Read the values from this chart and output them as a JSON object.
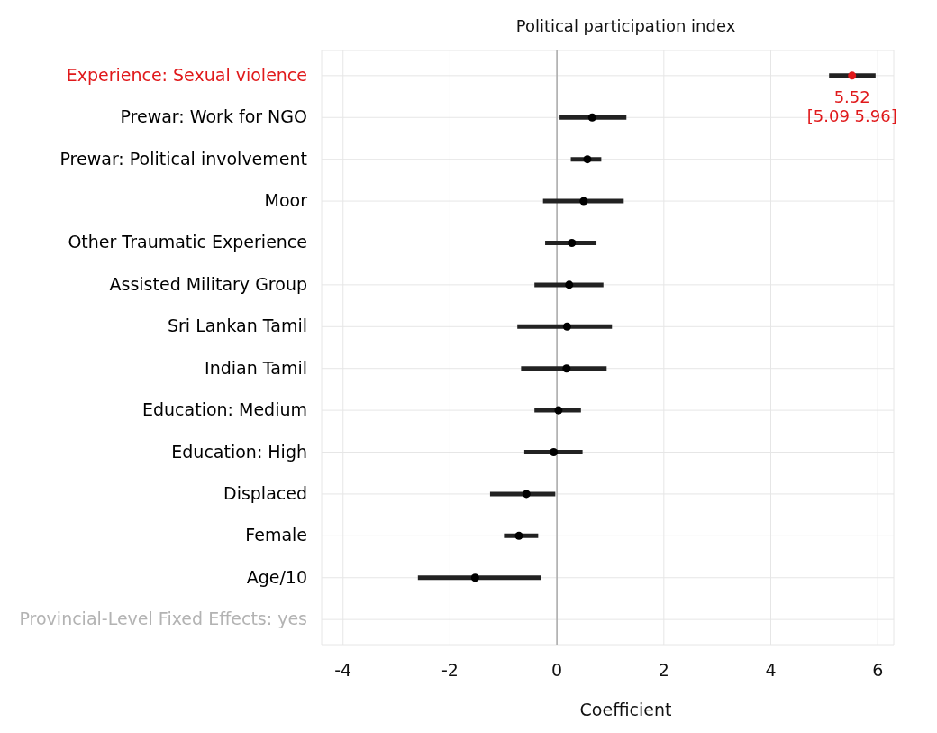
{
  "chart_data": {
    "type": "scatter",
    "orientation": "horizontal",
    "title": "Political participation index",
    "xlabel": "Coefficient",
    "categories": [
      "Experience: Sexual violence",
      "Prewar: Work for NGO",
      "Prewar: Political involvement",
      "Moor",
      "Other Traumatic Experience",
      "Assisted Military Group",
      "Sri Lankan Tamil",
      "Indian Tamil",
      "Education: Medium",
      "Education: High",
      "Displaced",
      "Female",
      "Age/10",
      "Provincial-Level Fixed Effects: yes"
    ],
    "values": [
      5.52,
      0.66,
      0.57,
      0.5,
      0.28,
      0.23,
      0.19,
      0.18,
      0.03,
      -0.06,
      -0.57,
      -0.71,
      -1.53,
      null
    ],
    "errors": [
      [
        5.09,
        5.96
      ],
      [
        0.05,
        1.3
      ],
      [
        0.26,
        0.83
      ],
      [
        -0.26,
        1.25
      ],
      [
        -0.22,
        0.74
      ],
      [
        -0.42,
        0.87
      ],
      [
        -0.74,
        1.03
      ],
      [
        -0.67,
        0.93
      ],
      [
        -0.42,
        0.45
      ],
      [
        -0.61,
        0.48
      ],
      [
        -1.25,
        -0.03
      ],
      [
        -0.99,
        -0.35
      ],
      [
        -2.6,
        -0.29
      ],
      null
    ],
    "colors": [
      "#e0191b",
      "#000000",
      "#000000",
      "#000000",
      "#000000",
      "#000000",
      "#000000",
      "#000000",
      "#000000",
      "#000000",
      "#000000",
      "#000000",
      "#000000",
      "#b3b3b3"
    ],
    "value_labels": [
      "5.52\n[5.09 5.96]",
      null,
      null,
      null,
      null,
      null,
      null,
      null,
      null,
      null,
      null,
      null,
      null,
      null
    ],
    "xlim": [
      -4.4,
      6.3
    ],
    "xticks": [
      -4,
      -2,
      0,
      2,
      4,
      6
    ],
    "grid": true,
    "marker": "circle",
    "ref_lines": [
      {
        "axis": "x",
        "value": 0,
        "color": "#aaaaaa"
      }
    ]
  }
}
